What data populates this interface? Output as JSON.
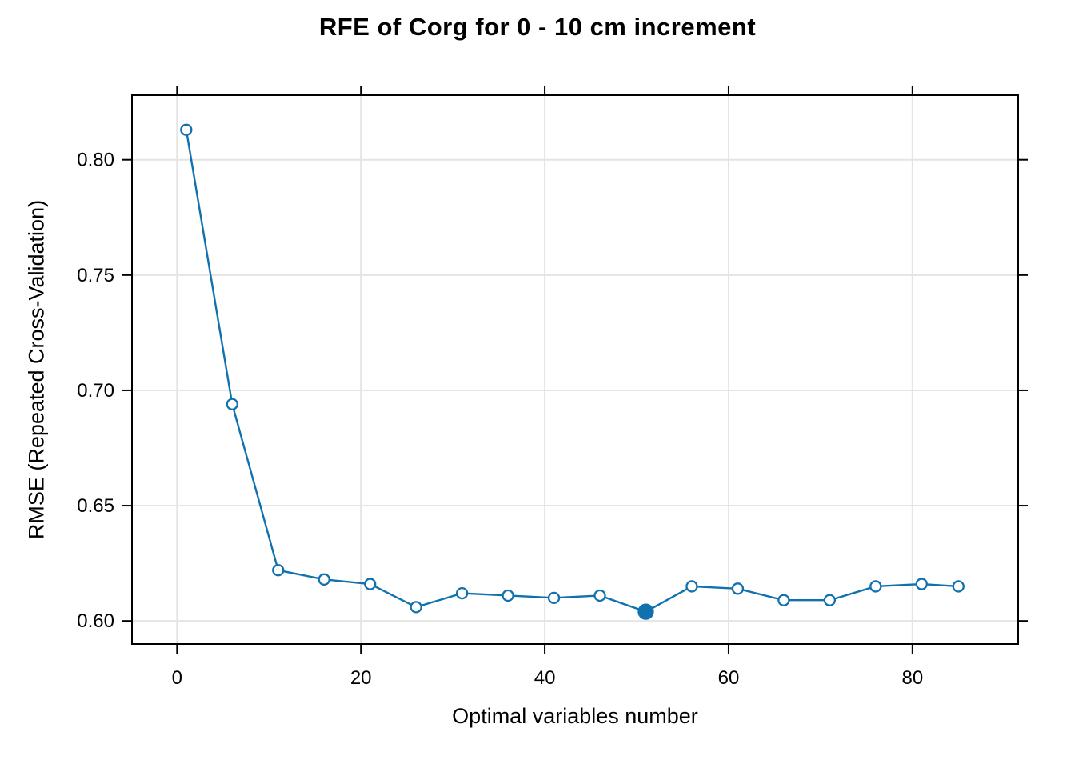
{
  "page": {
    "background": "#ffffff"
  },
  "chart_data": {
    "type": "line",
    "title": "RFE of Corg for 0 - 10 cm increment",
    "xlabel": "Optimal variables number",
    "ylabel": "RMSE (Repeated Cross-Validation)",
    "x": [
      1,
      6,
      11,
      16,
      21,
      26,
      31,
      36,
      41,
      46,
      51,
      56,
      61,
      66,
      71,
      76,
      81,
      85
    ],
    "series": [
      {
        "name": "RMSE",
        "values": [
          0.813,
          0.694,
          0.622,
          0.618,
          0.616,
          0.606,
          0.612,
          0.611,
          0.61,
          0.611,
          0.604,
          0.615,
          0.614,
          0.609,
          0.609,
          0.615,
          0.616,
          0.615
        ]
      }
    ],
    "best_point": {
      "x": 51,
      "y": 0.604
    },
    "x_tick_values": [
      0,
      20,
      40,
      60,
      80
    ],
    "x_tick_labels": [
      "0",
      "20",
      "40",
      "60",
      "80"
    ],
    "y_tick_values": [
      0.6,
      0.65,
      0.7,
      0.75,
      0.8
    ],
    "y_tick_labels": [
      "0.60",
      "0.65",
      "0.70",
      "0.75",
      "0.80"
    ],
    "xlim": [
      -4.9,
      91.5
    ],
    "ylim": [
      0.59,
      0.828
    ],
    "grid": true,
    "legend": "none",
    "marker": "open-circle",
    "best_marker": "filled-circle",
    "colors": {
      "line": "#1071ae",
      "marker_stroke": "#1071ae",
      "marker_fill": "#ffffff",
      "best_marker_fill": "#1071ae",
      "grid": "#e4e4e4",
      "axis": "#000000",
      "text": "#000000",
      "background": "#ffffff"
    }
  }
}
